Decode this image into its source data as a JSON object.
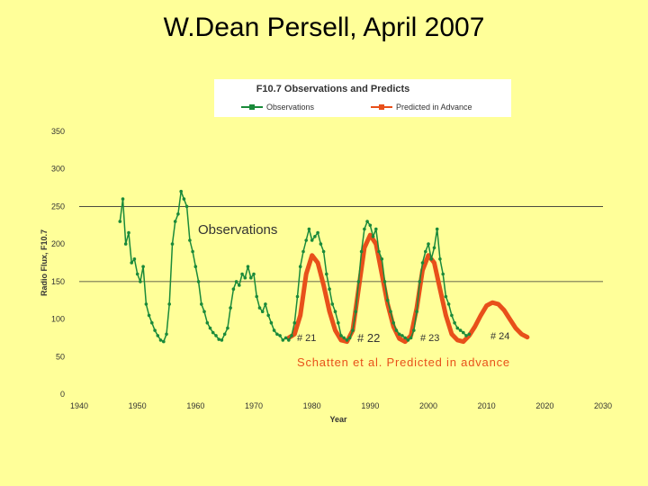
{
  "slide": {
    "title": "W.Dean Persell,  April 2007"
  },
  "colors": {
    "background": "#ffff99",
    "observations": "#1a8a3a",
    "predicted": "#e8501a",
    "grid": "#333333"
  },
  "chart_data": {
    "type": "line",
    "title": "F10.7 Observations and Predicts",
    "xlabel": "Year",
    "ylabel": "Radio Flux, F10.7",
    "xlim": [
      1940,
      2030
    ],
    "ylim": [
      0,
      350
    ],
    "xticks": [
      "1940",
      "1950",
      "1960",
      "1970",
      "1980",
      "1990",
      "2000",
      "2010",
      "2020",
      "2030"
    ],
    "yticks": [
      "0",
      "50",
      "100",
      "150",
      "200",
      "250",
      "300",
      "350"
    ],
    "gridlines_y": [
      150,
      250
    ],
    "legend": {
      "placement": "top"
    },
    "annotations": {
      "observations_label": "Observations",
      "predicted_label": "Schatten et al. Predicted in advance",
      "cycle_21": "# 21",
      "cycle_22": "# 22",
      "cycle_23": "# 23",
      "cycle_24": "# 24"
    },
    "series": [
      {
        "name": "Observations",
        "color": "#1a8a3a",
        "x": [
          1947,
          1947.5,
          1948,
          1948.5,
          1949,
          1949.5,
          1950,
          1950.5,
          1951,
          1951.5,
          1952,
          1952.5,
          1953,
          1953.5,
          1954,
          1954.5,
          1955,
          1955.5,
          1956,
          1956.5,
          1957,
          1957.5,
          1958,
          1958.5,
          1959,
          1959.5,
          1960,
          1960.5,
          1961,
          1961.5,
          1962,
          1962.5,
          1963,
          1963.5,
          1964,
          1964.5,
          1965,
          1965.5,
          1966,
          1966.5,
          1967,
          1967.5,
          1968,
          1968.5,
          1969,
          1969.5,
          1970,
          1970.5,
          1971,
          1971.5,
          1972,
          1972.5,
          1973,
          1973.5,
          1974,
          1974.5,
          1975,
          1975.5,
          1976,
          1976.5,
          1977,
          1977.5,
          1978,
          1978.5,
          1979,
          1979.5,
          1980,
          1980.5,
          1981,
          1981.5,
          1982,
          1982.5,
          1983,
          1983.5,
          1984,
          1984.5,
          1985,
          1985.5,
          1986,
          1986.5,
          1987,
          1987.5,
          1988,
          1988.5,
          1989,
          1989.5,
          1990,
          1990.5,
          1991,
          1991.5,
          1992,
          1992.5,
          1993,
          1993.5,
          1994,
          1994.5,
          1995,
          1995.5,
          1996,
          1996.5,
          1997,
          1997.5,
          1998,
          1998.5,
          1999,
          1999.5,
          2000,
          2000.5,
          2001,
          2001.5,
          2002,
          2002.5,
          2003,
          2003.5,
          2004,
          2004.5,
          2005,
          2005.5,
          2006,
          2006.5,
          2007
        ],
        "values": [
          230,
          260,
          200,
          215,
          175,
          180,
          160,
          150,
          170,
          120,
          105,
          95,
          85,
          78,
          72,
          70,
          80,
          120,
          200,
          230,
          240,
          270,
          260,
          250,
          205,
          190,
          170,
          150,
          120,
          110,
          95,
          88,
          82,
          78,
          73,
          72,
          80,
          88,
          115,
          140,
          150,
          145,
          160,
          155,
          170,
          155,
          160,
          130,
          115,
          110,
          120,
          105,
          95,
          85,
          80,
          78,
          72,
          75,
          72,
          78,
          95,
          130,
          170,
          190,
          205,
          220,
          205,
          210,
          215,
          200,
          190,
          160,
          140,
          120,
          110,
          95,
          78,
          75,
          72,
          75,
          85,
          110,
          150,
          190,
          220,
          230,
          225,
          210,
          220,
          190,
          180,
          150,
          125,
          110,
          95,
          85,
          80,
          78,
          75,
          72,
          75,
          85,
          110,
          150,
          175,
          190,
          200,
          180,
          195,
          220,
          180,
          160,
          130,
          120,
          105,
          95,
          88,
          85,
          82,
          78,
          80
        ]
      },
      {
        "name": "Predicted in Advance",
        "color": "#e8501a",
        "x": [
          1976,
          1977,
          1978,
          1979,
          1980,
          1981,
          1982,
          1983,
          1984,
          1985,
          1986,
          1987,
          1988,
          1989,
          1990,
          1991,
          1992,
          1993,
          1994,
          1995,
          1996,
          1997,
          1998,
          1999,
          2000,
          2001,
          2002,
          2003,
          2004,
          2005,
          2006,
          2007,
          2008,
          2009,
          2010,
          2011,
          2012,
          2013,
          2014,
          2015,
          2016,
          2017
        ],
        "values": [
          75,
          80,
          105,
          160,
          185,
          175,
          145,
          110,
          85,
          72,
          70,
          85,
          140,
          195,
          212,
          200,
          160,
          120,
          90,
          74,
          70,
          78,
          115,
          165,
          185,
          175,
          140,
          105,
          80,
          72,
          70,
          78,
          90,
          105,
          118,
          122,
          120,
          112,
          100,
          88,
          80,
          76
        ]
      }
    ]
  }
}
